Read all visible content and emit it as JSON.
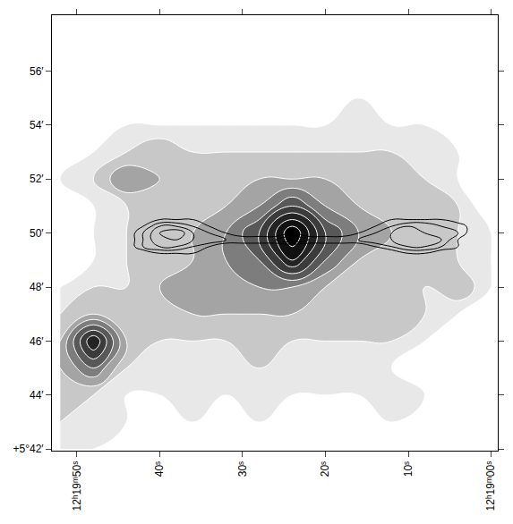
{
  "chart_data": {
    "type": "contour",
    "grid": false,
    "tick_labels": true,
    "color": "#ffffff",
    "x": [
      52,
      48,
      44,
      40,
      36,
      32,
      28,
      24,
      20,
      16,
      12,
      8,
      4,
      0
    ],
    "y": [
      42,
      43,
      44,
      45,
      46,
      47,
      48,
      49,
      50,
      51,
      52,
      53,
      54,
      55,
      56,
      57
    ],
    "z": [
      [
        1,
        1,
        0,
        0,
        1,
        0,
        0,
        1,
        0,
        0,
        1,
        0,
        0,
        0
      ],
      [
        2,
        2,
        1,
        1,
        1,
        1,
        1,
        1,
        0,
        1,
        1,
        1,
        0,
        0
      ],
      [
        3,
        2,
        1,
        1,
        2,
        1,
        2,
        1,
        1,
        1,
        2,
        1,
        0,
        0
      ],
      [
        3,
        5,
        2,
        2,
        2,
        2,
        2,
        2,
        2,
        2,
        1,
        1,
        0,
        0
      ],
      [
        3,
        8,
        3,
        2,
        2,
        2,
        3,
        2,
        2,
        2,
        2,
        1,
        1,
        0
      ],
      [
        2,
        3,
        3,
        3,
        3,
        3,
        3,
        3,
        3,
        3,
        3,
        2,
        1,
        0
      ],
      [
        1,
        2,
        2,
        3,
        4,
        4,
        4,
        4,
        3,
        3,
        3,
        2,
        3,
        1
      ],
      [
        0,
        1,
        2,
        3,
        3,
        4,
        5,
        8,
        5,
        3,
        3,
        3,
        2,
        1
      ],
      [
        0,
        1,
        2,
        3,
        3,
        4,
        6,
        10,
        6,
        4,
        3,
        3,
        2,
        1
      ],
      [
        0,
        1,
        2,
        3,
        3,
        3,
        4,
        6,
        4,
        3,
        3,
        3,
        2,
        0
      ],
      [
        1,
        2,
        4,
        3,
        3,
        3,
        3,
        3,
        3,
        3,
        3,
        2,
        1,
        0
      ],
      [
        0,
        1,
        2,
        3,
        2,
        2,
        2,
        2,
        2,
        2,
        2,
        2,
        1,
        0
      ],
      [
        0,
        1,
        1,
        1,
        1,
        1,
        1,
        1,
        1,
        2,
        1,
        1,
        0,
        0
      ],
      [
        0,
        0,
        1,
        1,
        1,
        0,
        1,
        1,
        1,
        1,
        1,
        0,
        0,
        1
      ],
      [
        0,
        0,
        0,
        1,
        1,
        0,
        0,
        1,
        0,
        0,
        1,
        1,
        0,
        1
      ],
      [
        0,
        0,
        0,
        0,
        0,
        0,
        0,
        0,
        0,
        0,
        0,
        0,
        0,
        0
      ]
    ],
    "zlim": [
      0,
      10
    ],
    "levels": [
      1,
      2,
      3,
      4,
      5,
      6,
      7,
      8,
      9
    ],
    "overlay": {
      "color": "#000000",
      "x": [
        44,
        42,
        40,
        38,
        36,
        34,
        32,
        30,
        28,
        26,
        24,
        22,
        20,
        18,
        16,
        14,
        12,
        10,
        8,
        6,
        4,
        2
      ],
      "y": [
        49.0,
        49.25,
        49.5,
        49.75,
        50.0,
        50.25,
        50.5,
        50.75
      ],
      "z": [
        [
          0,
          0,
          0,
          0,
          0,
          0,
          0,
          0,
          0,
          0,
          0,
          0,
          0,
          0,
          0,
          0,
          0,
          0,
          0,
          0,
          0,
          0
        ],
        [
          0,
          0,
          1,
          1,
          1,
          0,
          0,
          0,
          0,
          0,
          0,
          0,
          0,
          0,
          0,
          0,
          0,
          1,
          1,
          0,
          0,
          0
        ],
        [
          0,
          2,
          3,
          3,
          2,
          1,
          0,
          0,
          0,
          0,
          0,
          0,
          0,
          0,
          0,
          1,
          2,
          3,
          3,
          2,
          1,
          0
        ],
        [
          0,
          2,
          4,
          4,
          3,
          3,
          2,
          2,
          2,
          2,
          3,
          2,
          2,
          2,
          2,
          3,
          3,
          4,
          4,
          3,
          1,
          0
        ],
        [
          0,
          2,
          4,
          5,
          3,
          2,
          1,
          0,
          0,
          0,
          1,
          0,
          0,
          0,
          1,
          2,
          3,
          4,
          3,
          3,
          2,
          0
        ],
        [
          0,
          1,
          3,
          3,
          2,
          1,
          0,
          0,
          0,
          0,
          0,
          0,
          0,
          0,
          0,
          1,
          2,
          3,
          3,
          2,
          2,
          0
        ],
        [
          0,
          0,
          1,
          1,
          1,
          0,
          0,
          0,
          0,
          0,
          0,
          0,
          0,
          0,
          0,
          0,
          1,
          1,
          1,
          1,
          0,
          0
        ],
        [
          0,
          0,
          0,
          0,
          0,
          0,
          0,
          0,
          0,
          0,
          0,
          0,
          0,
          0,
          0,
          0,
          0,
          0,
          0,
          0,
          0,
          0
        ]
      ],
      "levels": [
        1,
        2,
        3,
        4,
        5
      ]
    },
    "xlim": [
      53,
      -0.8
    ],
    "ylim": [
      41.94,
      58.07
    ],
    "xticks": [
      {
        "value": 50,
        "label": "12ʰ19ᵐ50ˢ"
      },
      {
        "value": 40,
        "label": "40ˢ"
      },
      {
        "value": 30,
        "label": "30ˢ"
      },
      {
        "value": 20,
        "label": "20ˢ"
      },
      {
        "value": 10,
        "label": "10ˢ"
      },
      {
        "value": 0,
        "label": "12ʰ19ᵐ00ˢ"
      }
    ],
    "yticks": [
      {
        "value": 42,
        "label": "+5°42′"
      },
      {
        "value": 44,
        "label": "44′"
      },
      {
        "value": 46,
        "label": "46′"
      },
      {
        "value": 48,
        "label": "48′"
      },
      {
        "value": 50,
        "label": "50′"
      },
      {
        "value": 52,
        "label": "52′"
      },
      {
        "value": 54,
        "label": "54′"
      },
      {
        "value": 56,
        "label": "56′"
      }
    ]
  }
}
